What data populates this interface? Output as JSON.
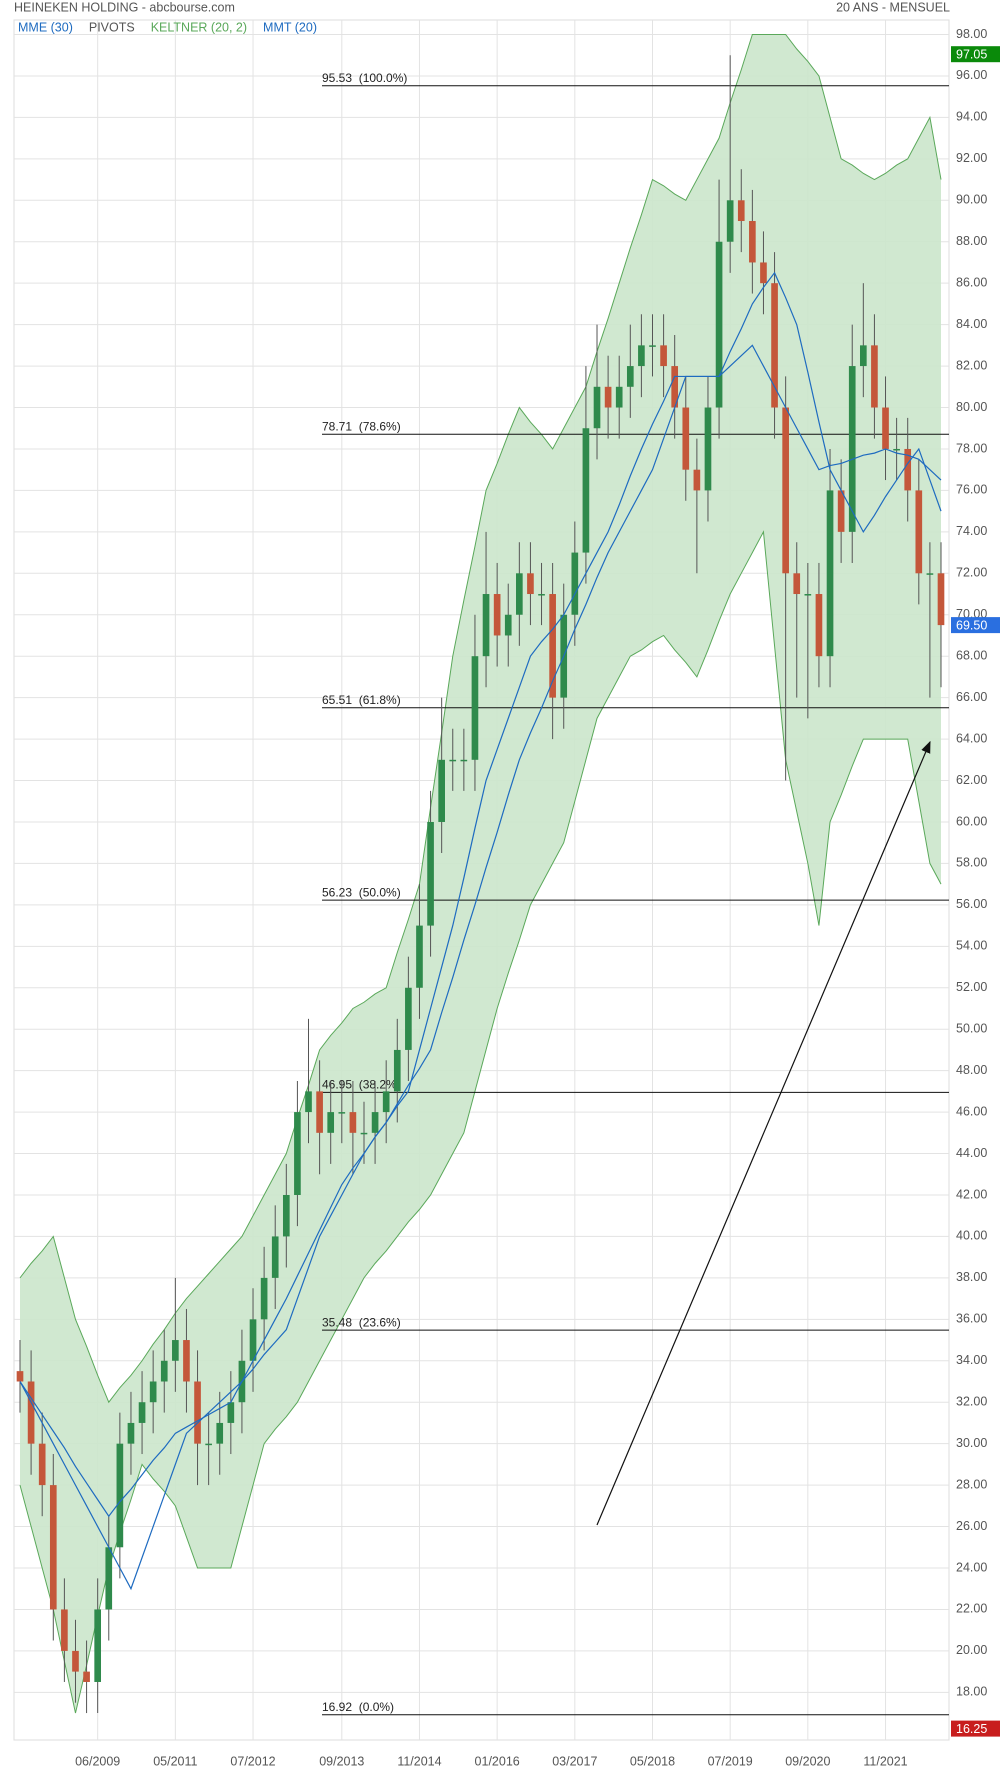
{
  "chart_data": {
    "type": "candlestick",
    "title": "HEINEKEN HOLDING - abcbourse.com",
    "subtitle": "20 ANS - MENSUEL",
    "categories": [
      null,
      null,
      null,
      null,
      null,
      null,
      null,
      "06/2009",
      null,
      null,
      null,
      null,
      null,
      null,
      "05/2011",
      null,
      null,
      null,
      null,
      null,
      null,
      "07/2012",
      null,
      null,
      null,
      null,
      null,
      null,
      null,
      "09/2013",
      null,
      null,
      null,
      null,
      null,
      null,
      "11/2014",
      null,
      null,
      null,
      null,
      null,
      null,
      "01/2016",
      null,
      null,
      null,
      null,
      null,
      null,
      "03/2017",
      null,
      null,
      null,
      null,
      null,
      null,
      "05/2018",
      null,
      null,
      null,
      null,
      null,
      null,
      "07/2019",
      null,
      null,
      null,
      null,
      null,
      null,
      "09/2020",
      null,
      null,
      null,
      null,
      null,
      null,
      "11/2021",
      null,
      null,
      null,
      null,
      null
    ],
    "ohlc": {
      "open": [
        33.5,
        33,
        30,
        28,
        22,
        20,
        19,
        18.5,
        22,
        25,
        30,
        31,
        32,
        33,
        34,
        35,
        33,
        30,
        30,
        31,
        32,
        34,
        36,
        38,
        40,
        42,
        46,
        47,
        45,
        46,
        46,
        45,
        45,
        46,
        47,
        49,
        52,
        55,
        60,
        63,
        63,
        63,
        68,
        71,
        69,
        70,
        72,
        71,
        71,
        66,
        70,
        73,
        79,
        81,
        80,
        81,
        82,
        83,
        83,
        82,
        80,
        77,
        76,
        80,
        88,
        90,
        89,
        87,
        86,
        80,
        72,
        71,
        71,
        68,
        76,
        74,
        82,
        83,
        80,
        78,
        78,
        76,
        72,
        72
      ],
      "high": [
        35,
        34.5,
        31.5,
        29.5,
        23.5,
        21.5,
        20.5,
        23.5,
        26.5,
        31.5,
        32.5,
        33.5,
        34.5,
        35.5,
        38,
        36.5,
        34.5,
        31.5,
        32.5,
        33.5,
        35.5,
        37.5,
        39.5,
        41.5,
        43.5,
        47.5,
        50.5,
        48.5,
        47.5,
        47.5,
        47.5,
        46.5,
        47.5,
        48.5,
        50.5,
        53.5,
        57,
        61.5,
        66,
        64.5,
        64.5,
        70,
        74,
        72.5,
        71.5,
        73.5,
        73.5,
        72.5,
        72.5,
        71.5,
        74.5,
        82,
        84,
        82.5,
        82.5,
        84,
        84.5,
        84.5,
        84.5,
        83.5,
        81.5,
        78.5,
        81.5,
        91,
        97,
        91.5,
        90.5,
        88.5,
        87.5,
        81.5,
        73.5,
        72.5,
        72.5,
        78,
        77.5,
        84,
        86,
        84.5,
        81.5,
        79.5,
        79.5,
        77.5,
        73.5,
        73.5
      ],
      "low": [
        31.5,
        28.5,
        26.5,
        20.5,
        18.5,
        17.5,
        17,
        17,
        20.5,
        23.5,
        28.5,
        29.5,
        30.5,
        31.5,
        32.5,
        31.5,
        28,
        28,
        28.5,
        29.5,
        30.5,
        32.5,
        34.5,
        36.5,
        38.5,
        40.5,
        44.5,
        43,
        43.5,
        44.5,
        43,
        43.5,
        43.5,
        44.5,
        45.5,
        47.5,
        50.5,
        53.5,
        58.5,
        61.5,
        61.5,
        61.5,
        66.5,
        67.5,
        67.5,
        68.5,
        69.5,
        69.5,
        64,
        64.5,
        68.5,
        71.5,
        77.5,
        78.5,
        78.5,
        79.5,
        80.5,
        81.5,
        80.5,
        78.5,
        75.5,
        72,
        74.5,
        78.5,
        86.5,
        87.5,
        85.5,
        84.5,
        78.5,
        62,
        66,
        65,
        66.5,
        66.5,
        72.5,
        72.5,
        80.5,
        78.5,
        76.5,
        76.5,
        74.5,
        70.5,
        66,
        66.5
      ],
      "close": [
        33,
        30,
        28,
        22,
        20,
        19,
        18.5,
        22,
        25,
        30,
        31,
        32,
        33,
        34,
        35,
        33,
        30,
        30,
        31,
        32,
        34,
        36,
        38,
        40,
        42,
        46,
        47,
        45,
        46,
        46,
        45,
        45,
        46,
        47,
        49,
        52,
        55,
        60,
        63,
        63,
        63,
        68,
        71,
        69,
        70,
        72,
        71,
        71,
        66,
        70,
        73,
        79,
        81,
        80,
        81,
        82,
        83,
        83,
        82,
        80,
        77,
        76,
        80,
        88,
        90,
        89,
        87,
        86,
        80,
        72,
        71,
        71,
        68,
        76,
        74,
        82,
        83,
        80,
        78,
        78,
        76,
        72,
        72,
        69.5
      ],
      "up_color": "#2f8a4c",
      "down_color": "#c4573a"
    },
    "keltner": {
      "name": "KELTNER (20, 2)",
      "color": "#5aa85a",
      "fill": "#cbe6cb",
      "upper": [
        38,
        38.7,
        39.3,
        40,
        38,
        36,
        34.7,
        33.3,
        32,
        32.7,
        33.3,
        34,
        34.8,
        35.5,
        36.3,
        37,
        37.6,
        38.2,
        38.8,
        39.4,
        40,
        41,
        42,
        43,
        44,
        45.7,
        47.3,
        49,
        49.7,
        50.3,
        51,
        51.3,
        51.7,
        52,
        53.7,
        55.3,
        57,
        60.7,
        64.3,
        68,
        70.7,
        73.3,
        76,
        77.3,
        78.7,
        80,
        79.3,
        78.7,
        78,
        79,
        80,
        81,
        82.7,
        84.3,
        86,
        87.7,
        89.3,
        91,
        90.7,
        90.3,
        90,
        91,
        92,
        93,
        94.7,
        96.3,
        98,
        98,
        98,
        98,
        97.3,
        96.7,
        96,
        94,
        92,
        91.7,
        91.3,
        91,
        91.3,
        91.7,
        92,
        93,
        94,
        91
      ],
      "lower": [
        28,
        26,
        24,
        22,
        19.5,
        17,
        19.3,
        21.7,
        24,
        25.7,
        27.3,
        29,
        28.3,
        27.7,
        27,
        25.5,
        24,
        24,
        24,
        24,
        26,
        28,
        30,
        30.7,
        31.3,
        32,
        33,
        34,
        35,
        36,
        37,
        38,
        38.7,
        39.3,
        40,
        40.7,
        41.3,
        42,
        43,
        44,
        45,
        47,
        49,
        51,
        52.7,
        54.3,
        56,
        57,
        58,
        59,
        61,
        63,
        65,
        66,
        67,
        68,
        68.3,
        68.7,
        69,
        68.3,
        67.7,
        67,
        68.3,
        69.7,
        71,
        72,
        73,
        74,
        68.5,
        63,
        60.5,
        58,
        55,
        60,
        61.3,
        62.7,
        64,
        64,
        64,
        64,
        64,
        61,
        58,
        57
      ]
    },
    "pivots": {
      "name": "PIVOTS",
      "color": "#555555"
    },
    "series": [
      {
        "name": "MME (30)",
        "color": "#1e6bc0",
        "values": [
          33,
          32.2,
          31.4,
          30.6,
          29.8,
          28.9,
          28.1,
          27.3,
          26.5,
          27.2,
          27.8,
          28.5,
          29.2,
          29.8,
          30.5,
          30.8,
          31.1,
          31.4,
          31.7,
          32,
          33,
          34,
          35,
          36,
          37,
          38.1,
          39.2,
          40.3,
          41.4,
          42.5,
          43.3,
          44,
          44.8,
          45.5,
          46.4,
          47.3,
          48.1,
          49,
          50.8,
          52.5,
          54.3,
          56,
          57.8,
          59.5,
          61.3,
          63,
          64.3,
          65.5,
          66.8,
          68,
          69.3,
          70.5,
          71.8,
          73,
          74,
          75,
          76,
          77,
          78.5,
          80,
          81.5,
          81.5,
          81.5,
          81.5,
          82,
          82.5,
          83,
          82,
          81,
          80,
          79,
          78,
          77,
          77.2,
          77.3,
          77.5,
          77.7,
          77.8,
          78,
          77.8,
          77.7,
          77.5,
          77,
          76.5
        ]
      },
      {
        "name": "MMT (20)",
        "color": "#1e6bc0",
        "values": [
          33,
          32,
          31,
          30,
          29,
          28,
          27,
          26,
          25,
          24,
          23,
          24.5,
          26,
          27.5,
          29,
          30.5,
          31,
          31.5,
          32,
          32.5,
          33,
          33.6,
          34.3,
          34.9,
          35.5,
          37,
          38.5,
          40,
          41,
          42,
          43,
          44,
          44.8,
          45.5,
          46.3,
          47,
          49,
          51,
          53,
          55,
          57.3,
          59.7,
          62,
          63.5,
          65,
          66.5,
          68,
          68.7,
          69.3,
          70,
          71,
          72,
          73,
          74,
          75.3,
          76.7,
          78,
          79.2,
          80.3,
          81.5,
          81.5,
          81.5,
          81.5,
          81.5,
          82.7,
          83.8,
          85,
          85.8,
          86.5,
          85.3,
          84,
          81.7,
          79.3,
          77,
          76,
          75,
          74,
          74.8,
          75.7,
          76.5,
          77.3,
          78,
          76.5,
          75
        ]
      }
    ],
    "fibonacci": [
      {
        "value": 95.53,
        "label": "95.53  (100.0%)"
      },
      {
        "value": 78.71,
        "label": "78.71  (78.6%)"
      },
      {
        "value": 65.51,
        "label": "65.51  (61.8%)"
      },
      {
        "value": 56.23,
        "label": "56.23  (50.0%)"
      },
      {
        "value": 46.95,
        "label": "46.95  (38.2%)"
      },
      {
        "value": 35.48,
        "label": "35.48  (23.6%)"
      },
      {
        "value": 16.92,
        "label": "16.92  (0.0%)"
      }
    ],
    "price_tags": [
      {
        "value": 97.05,
        "color": "#0a8a0a"
      },
      {
        "value": 69.5,
        "label": "69.50",
        "color": "#2a6fe0"
      },
      {
        "value": 16.25,
        "color": "#c81e1e"
      }
    ],
    "ylim": [
      15.7,
      98.7
    ],
    "yticks": [
      {
        "value": 18,
        "label": "18.00"
      },
      {
        "value": 20,
        "label": "20.00"
      },
      {
        "value": 22,
        "label": "22.00"
      },
      {
        "value": 24,
        "label": "24.00"
      },
      {
        "value": 26,
        "label": "26.00"
      },
      {
        "value": 28,
        "label": "28.00"
      },
      {
        "value": 30,
        "label": "30.00"
      },
      {
        "value": 32,
        "label": "32.00"
      },
      {
        "value": 34,
        "label": "34.00"
      },
      {
        "value": 36,
        "label": "36.00"
      },
      {
        "value": 38,
        "label": "38.00"
      },
      {
        "value": 40,
        "label": "40.00"
      },
      {
        "value": 42,
        "label": "42.00"
      },
      {
        "value": 44,
        "label": "44.00"
      },
      {
        "value": 46,
        "label": "46.00"
      },
      {
        "value": 48,
        "label": "48.00"
      },
      {
        "value": 50,
        "label": "50.00"
      },
      {
        "value": 52,
        "label": "52.00"
      },
      {
        "value": 54,
        "label": "54.00"
      },
      {
        "value": 56,
        "label": "56.00"
      },
      {
        "value": 58,
        "label": "58.00"
      },
      {
        "value": 60,
        "label": "60.00"
      },
      {
        "value": 62,
        "label": "62.00"
      },
      {
        "value": 64,
        "label": "64.00"
      },
      {
        "value": 66,
        "label": "66.00"
      },
      {
        "value": 68,
        "label": "68.00"
      },
      {
        "value": 70,
        "label": "70.00"
      },
      {
        "value": 72,
        "label": "72.00"
      },
      {
        "value": 74,
        "label": "74.00"
      },
      {
        "value": 76,
        "label": "76.00"
      },
      {
        "value": 78,
        "label": "78.00"
      },
      {
        "value": 80,
        "label": "80.00"
      },
      {
        "value": 82,
        "label": "82.00"
      },
      {
        "value": 84,
        "label": "84.00"
      },
      {
        "value": 86,
        "label": "86.00"
      },
      {
        "value": 88,
        "label": "88.00"
      },
      {
        "value": 90,
        "label": "90.00"
      },
      {
        "value": 92,
        "label": "92.00"
      },
      {
        "value": 94,
        "label": "94.00"
      },
      {
        "value": 96,
        "label": "96.00"
      },
      {
        "value": 98,
        "label": "98.00"
      }
    ],
    "grid": true
  }
}
